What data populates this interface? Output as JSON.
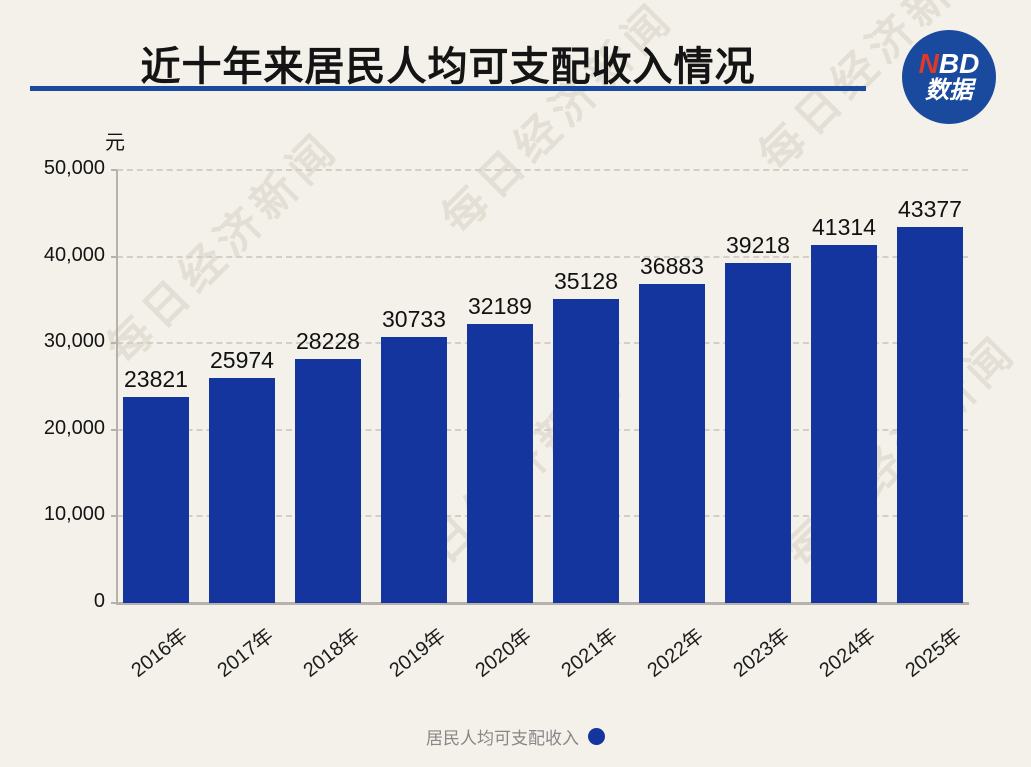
{
  "page": {
    "background": "#f4f1ea"
  },
  "header": {
    "title": "近十年来居民人均可支配收入情况",
    "underline_color": "#1a4a9e",
    "logo": {
      "top_red": "N",
      "top_white": "BD",
      "bottom": "数据",
      "bg_color": "#1a4a9e",
      "red_color": "#e0392a"
    }
  },
  "chart_data": {
    "type": "bar",
    "title": "近十年来居民人均可支配收入情况",
    "unit_label": "元",
    "categories": [
      "2016年",
      "2017年",
      "2018年",
      "2019年",
      "2020年",
      "2021年",
      "2022年",
      "2023年",
      "2024年",
      "2025年"
    ],
    "values": [
      23821,
      25974,
      28228,
      30733,
      32189,
      35128,
      36883,
      39218,
      41314,
      43377
    ],
    "series_name": "居民人均可支配收入",
    "ylim": [
      0,
      50000
    ],
    "y_tick_interval": 10000,
    "y_tick_labels": [
      "50,000",
      "40,000",
      "30,000",
      "20,000",
      "10,000",
      "0"
    ],
    "grid": "horizontal-dashed",
    "value_labels_shown": true,
    "bar_color": "#14359d",
    "legend_position": "bottom-center"
  },
  "legend": {
    "label": "居民人均可支配收入",
    "marker": "circle",
    "marker_color": "#14359d"
  },
  "watermark": {
    "text": "每日经济新闻"
  }
}
